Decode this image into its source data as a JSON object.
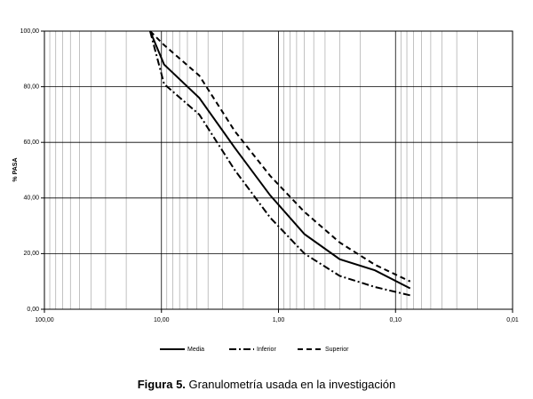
{
  "chart_data": {
    "type": "line",
    "ylabel": "% PASA",
    "x": [
      12.5,
      9.5,
      4.75,
      2.36,
      1.18,
      0.6,
      0.3,
      0.15,
      0.075
    ],
    "series": [
      {
        "name": "Media",
        "color": "#000000",
        "dash": "solid",
        "values": [
          100,
          88,
          76,
          58,
          41,
          27,
          18,
          14,
          7.5
        ]
      },
      {
        "name": "Inferior",
        "color": "#000000",
        "dash": "dashdot",
        "values": [
          100,
          81,
          70,
          50,
          33,
          20,
          12,
          8,
          5
        ]
      },
      {
        "name": "Superior",
        "color": "#000000",
        "dash": "dash",
        "values": [
          100,
          95,
          84,
          64,
          48,
          35,
          24,
          16,
          10
        ]
      }
    ],
    "xlim": [
      100,
      0.01
    ],
    "xticks": [
      {
        "value": 100,
        "label": "100,00"
      },
      {
        "value": 10,
        "label": "10,00"
      },
      {
        "value": 1,
        "label": "1,00"
      },
      {
        "value": 0.1,
        "label": "0,10"
      },
      {
        "value": 0.01,
        "label": "0,01"
      }
    ],
    "xscale": "log",
    "ylim": [
      0,
      100
    ],
    "yticks": [
      {
        "value": 0,
        "label": "0,00"
      },
      {
        "value": 20,
        "label": "20,00"
      },
      {
        "value": 40,
        "label": "40,00"
      },
      {
        "value": 60,
        "label": "60,00"
      },
      {
        "value": 80,
        "label": "80,00"
      },
      {
        "value": 100,
        "label": "100,00"
      }
    ],
    "grid": true,
    "legend": "bottom"
  },
  "caption": {
    "label": "Figura 5.",
    "text": "Granulometría usada en la investigación"
  }
}
